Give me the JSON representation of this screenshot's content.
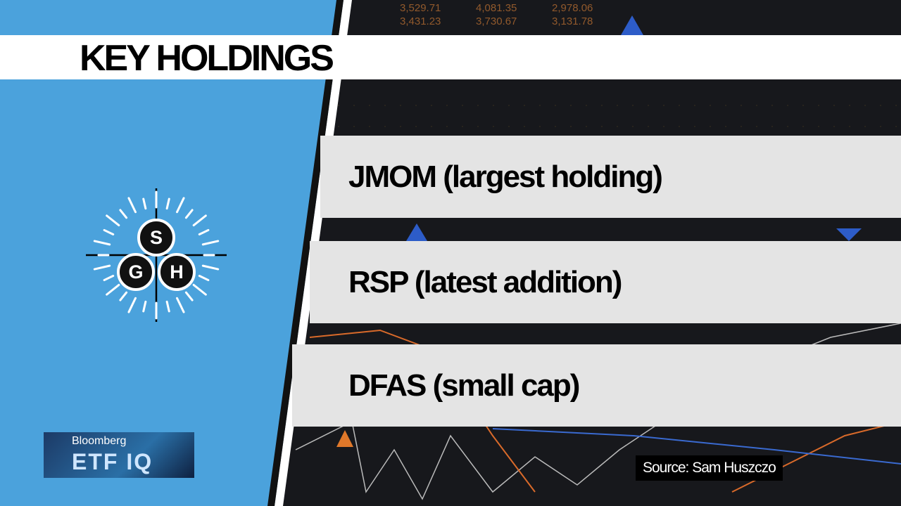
{
  "header": {
    "title": "KEY HOLDINGS"
  },
  "holdings": [
    "JMOM (largest holding)",
    "RSP (latest addition)",
    "DFAS (small cap)"
  ],
  "source": "Source: Sam Huszczo",
  "logo": {
    "letters": [
      "S",
      "G",
      "H"
    ]
  },
  "brand": {
    "network": "Bloomberg",
    "show": "ETF IQ"
  },
  "background_numbers": [
    [
      "3,529.71",
      "4,081.35",
      "2,978.06"
    ],
    [
      "3,431.23",
      "3,730.67",
      "3,131.78"
    ]
  ]
}
